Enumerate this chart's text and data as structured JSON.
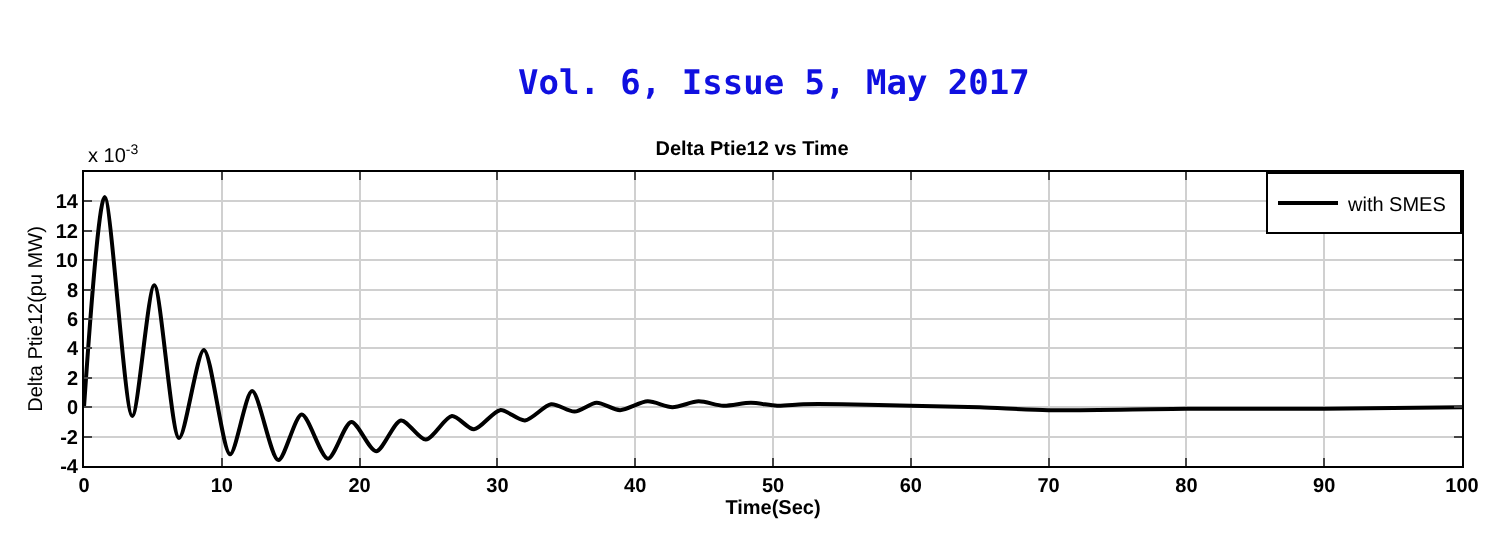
{
  "chart_data": {
    "type": "line",
    "title": "Delta Ptie12 vs Time",
    "xlabel": "Time(Sec)",
    "ylabel": "Delta Ptie12(pu MW)",
    "annotations": [
      "Vol. 6, Issue 5, May 2017",
      "x 10$^{-3}$"
    ],
    "series": [
      {
        "name": "with SMES",
        "color": "#000000",
        "x": [
          0,
          1.5,
          3.5,
          5.1,
          6.9,
          8.7,
          10.6,
          12.2,
          14.1,
          15.8,
          17.7,
          19.4,
          21.2,
          23.0,
          24.8,
          26.7,
          28.3,
          30.2,
          32.0,
          33.9,
          35.6,
          37.2,
          38.9,
          40.9,
          42.7,
          44.6,
          46.4,
          48.4,
          50.3,
          52.2,
          55,
          60,
          65,
          70,
          80,
          90,
          100
        ],
        "values": [
          0,
          14.3,
          -0.6,
          8.3,
          -2.1,
          3.9,
          -3.2,
          1.1,
          -3.6,
          -0.5,
          -3.5,
          -1.0,
          -3.0,
          -0.9,
          -2.2,
          -0.6,
          -1.5,
          -0.2,
          -0.9,
          0.2,
          -0.3,
          0.3,
          -0.2,
          0.4,
          0.0,
          0.4,
          0.1,
          0.3,
          0.1,
          0.2,
          0.2,
          0.1,
          0.0,
          -0.2,
          -0.1,
          -0.1,
          0
        ]
      }
    ],
    "xlim": [
      0,
      100
    ],
    "xticks": [
      0,
      10,
      20,
      30,
      40,
      50,
      60,
      70,
      80,
      90,
      100
    ],
    "ylim": [
      -4,
      16
    ],
    "yticks": [
      -4,
      -2,
      0,
      2,
      4,
      6,
      8,
      10,
      12,
      14
    ],
    "grid": true,
    "legend": "top right",
    "marker": "none",
    "line_style": "solid"
  }
}
